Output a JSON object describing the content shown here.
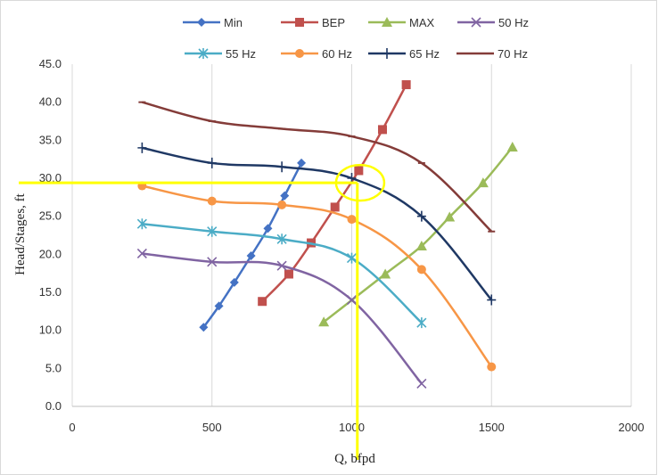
{
  "chart_data": {
    "type": "line",
    "title": "",
    "xlabel": "Q, bfpd",
    "ylabel": "Head/Stages, ft",
    "xlim": [
      0,
      2000
    ],
    "ylim": [
      0,
      45
    ],
    "x_ticks": [
      "0",
      "500",
      "1000",
      "1500",
      "2000"
    ],
    "y_ticks": [
      "0.0",
      "5.0",
      "10.0",
      "15.0",
      "20.0",
      "25.0",
      "30.0",
      "35.0",
      "40.0",
      "45.0"
    ],
    "grid": "vertical",
    "legend_position": "top",
    "series": [
      {
        "name": "Min",
        "color": "#4472C4",
        "marker": "diamond",
        "points": [
          [
            470,
            10.4
          ],
          [
            525,
            13.2
          ],
          [
            580,
            16.3
          ],
          [
            640,
            19.8
          ],
          [
            700,
            23.4
          ],
          [
            760,
            27.7
          ],
          [
            820,
            32.0
          ]
        ]
      },
      {
        "name": "BEP",
        "color": "#C0504D",
        "marker": "square",
        "points": [
          [
            680,
            13.8
          ],
          [
            775,
            17.4
          ],
          [
            855,
            21.5
          ],
          [
            940,
            26.2
          ],
          [
            1025,
            31.0
          ],
          [
            1110,
            36.4
          ],
          [
            1195,
            42.3
          ]
        ]
      },
      {
        "name": "MAX",
        "color": "#9BBB59",
        "marker": "triangle",
        "points": [
          [
            900,
            11.1
          ],
          [
            1120,
            17.4
          ],
          [
            1250,
            21.1
          ],
          [
            1350,
            24.9
          ],
          [
            1470,
            29.4
          ],
          [
            1575,
            34.1
          ]
        ]
      },
      {
        "name": "50 Hz",
        "color": "#8064A2",
        "marker": "x",
        "points": [
          [
            250,
            20.1
          ],
          [
            500,
            19.0
          ],
          [
            750,
            18.5
          ],
          [
            1000,
            14.0
          ],
          [
            1250,
            3.0
          ]
        ]
      },
      {
        "name": "55 Hz",
        "color": "#4BACC6",
        "marker": "asterisk",
        "points": [
          [
            250,
            24.0
          ],
          [
            500,
            23.0
          ],
          [
            750,
            22.0
          ],
          [
            1000,
            19.5
          ],
          [
            1250,
            11.0
          ]
        ]
      },
      {
        "name": "60 Hz",
        "color": "#F79646",
        "marker": "circle",
        "points": [
          [
            250,
            29.0
          ],
          [
            500,
            27.0
          ],
          [
            750,
            26.5
          ],
          [
            1000,
            24.6
          ],
          [
            1250,
            18.0
          ],
          [
            1500,
            5.2
          ]
        ]
      },
      {
        "name": "65 Hz",
        "color": "#1F3864",
        "marker": "plus",
        "points": [
          [
            250,
            34.0
          ],
          [
            500,
            32.0
          ],
          [
            750,
            31.5
          ],
          [
            1000,
            30.0
          ],
          [
            1250,
            25.0
          ],
          [
            1500,
            14.0
          ]
        ]
      },
      {
        "name": "70 Hz",
        "color": "#843C39",
        "marker": "dash",
        "points": [
          [
            250,
            40.0
          ],
          [
            500,
            37.5
          ],
          [
            750,
            36.5
          ],
          [
            1000,
            35.5
          ],
          [
            1250,
            32.0
          ],
          [
            1500,
            23.0
          ]
        ]
      }
    ],
    "annotations": [
      {
        "type": "hline",
        "y": 29.4,
        "x_from": 0,
        "x_to": 1020,
        "color": "#FFFF00"
      },
      {
        "type": "vline",
        "x": 1020,
        "y_from": 0,
        "y_to": 29.4,
        "color": "#FFFF00"
      },
      {
        "type": "ellipse",
        "cx": 1030,
        "cy": 29.4,
        "color": "#FFFF00"
      }
    ]
  }
}
